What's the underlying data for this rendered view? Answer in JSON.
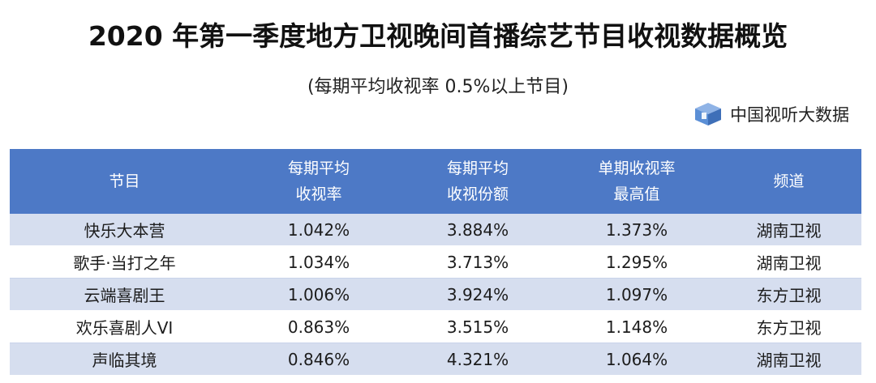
{
  "title": "2020 年第一季度地方卫视晚间首播综艺节目收视数据概览",
  "subtitle": "(每期平均收视率 0.5%以上节目)",
  "brand": {
    "name": "中国视听大数据",
    "logo_icon": "cube-logo-icon"
  },
  "colors": {
    "header_bg": "#4d79c6",
    "row_highlight": "#d6deef"
  },
  "table": {
    "headers": [
      {
        "line1": "节目",
        "line2": ""
      },
      {
        "line1": "每期平均",
        "line2": "收视率"
      },
      {
        "line1": "每期平均",
        "line2": "收视份额"
      },
      {
        "line1": "单期收视率",
        "line2": "最高值"
      },
      {
        "line1": "频道",
        "line2": ""
      }
    ],
    "rows": [
      [
        "快乐大本营",
        "1.042%",
        "3.884%",
        "1.373%",
        "湖南卫视"
      ],
      [
        "歌手·当打之年",
        "1.034%",
        "3.713%",
        "1.295%",
        "湖南卫视"
      ],
      [
        "云端喜剧王",
        "1.006%",
        "3.924%",
        "1.097%",
        "东方卫视"
      ],
      [
        "欢乐喜剧人VI",
        "0.863%",
        "3.515%",
        "1.148%",
        "东方卫视"
      ],
      [
        "声临其境",
        "0.846%",
        "4.321%",
        "1.064%",
        "湖南卫视"
      ]
    ]
  }
}
